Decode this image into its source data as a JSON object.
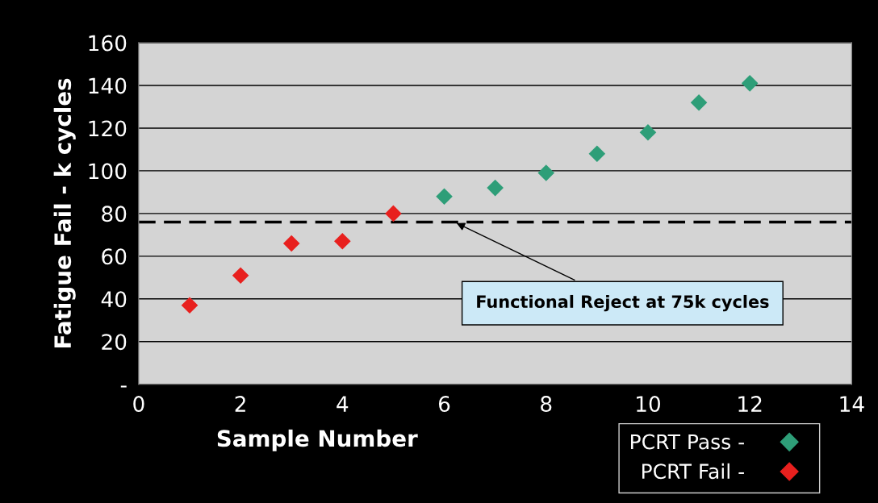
{
  "chart_data": {
    "type": "scatter",
    "xlabel": "Sample Number",
    "ylabel": "Fatigue Fail - k cycles",
    "series": [
      {
        "name": "PCRT Pass -",
        "color": "#2e9e78",
        "x": [
          6,
          7,
          8,
          9,
          10,
          11,
          12
        ],
        "values": [
          88,
          92,
          99,
          108,
          118,
          132,
          141
        ]
      },
      {
        "name": "PCRT Fail -",
        "color": "#e8201e",
        "x": [
          1,
          2,
          3,
          4,
          5
        ],
        "values": [
          37,
          51,
          66,
          67,
          80
        ]
      }
    ],
    "xlim": [
      0,
      14
    ],
    "xticks": [
      0,
      2,
      4,
      6,
      8,
      10,
      12,
      14
    ],
    "ylim": [
      0,
      160
    ],
    "yticks": [
      {
        "value": 0,
        "label": "-"
      },
      20,
      40,
      60,
      80,
      100,
      120,
      140,
      160
    ],
    "grid": "y",
    "marker": "diamond",
    "legend": "bottom right",
    "ref_lines": [
      {
        "axis": "y",
        "value": 76,
        "color": "#000000",
        "line_style": "dashed"
      }
    ],
    "annotations": [
      {
        "text": "Functional Reject at 75k cycles",
        "x": 6.2,
        "y": 76
      }
    ]
  }
}
